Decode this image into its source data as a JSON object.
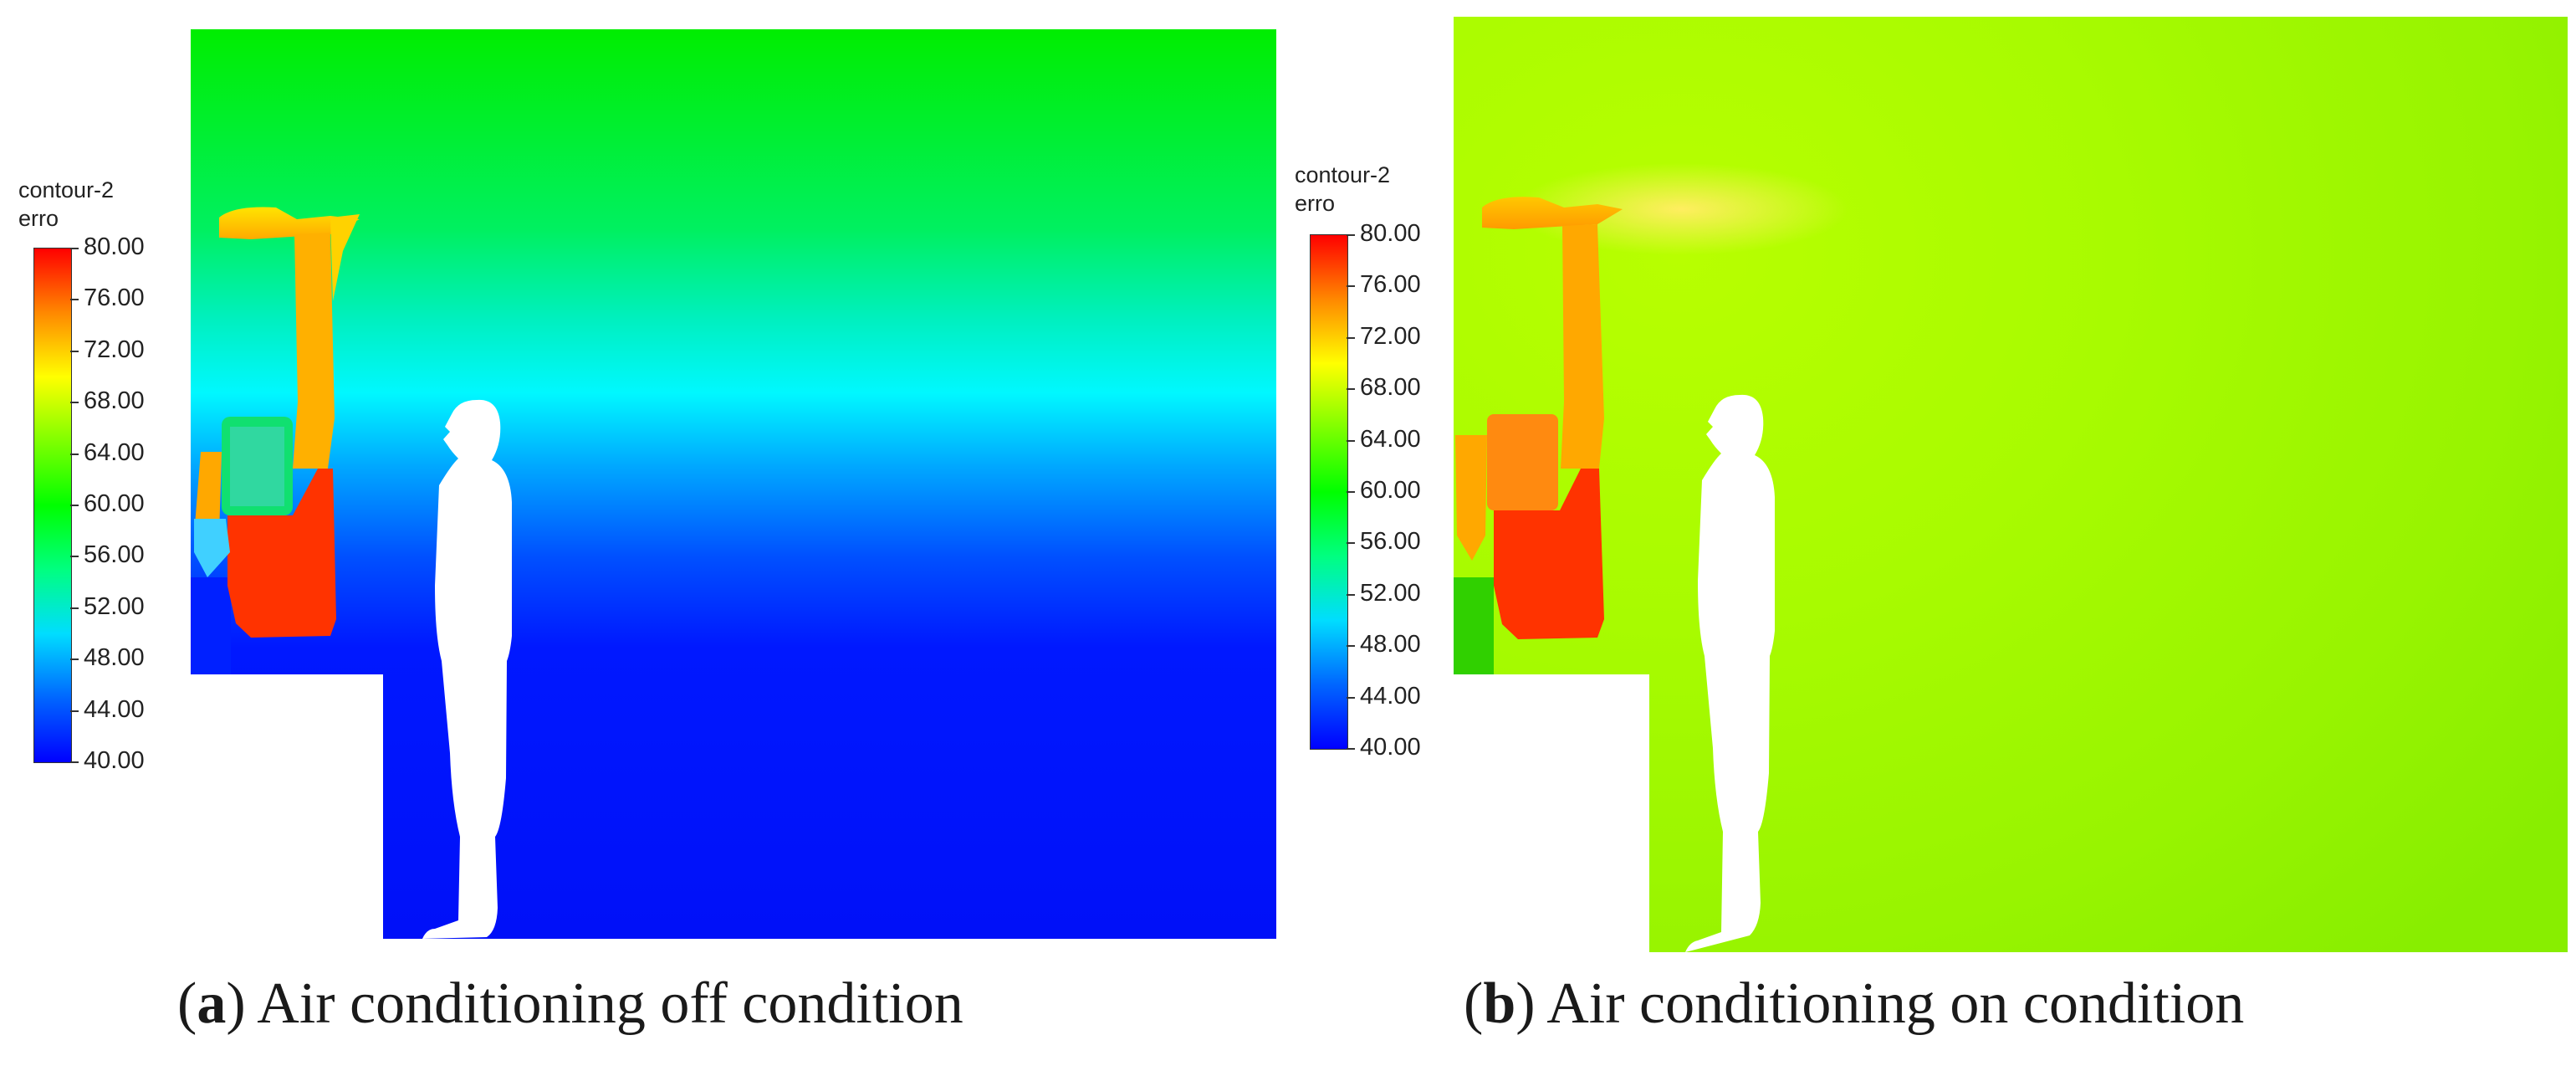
{
  "legend_colors": [
    "#0000ff",
    "#0066ff",
    "#00ddff",
    "#00ff80",
    "#00ff00",
    "#7fff00",
    "#ffff00",
    "#ff8800",
    "#ff0000"
  ],
  "panels": [
    {
      "id": "a",
      "legend": {
        "title_line1": "contour-2",
        "title_line2": "erro",
        "ticks": [
          "80.00",
          "76.00",
          "72.00",
          "68.00",
          "64.00",
          "60.00",
          "56.00",
          "52.00",
          "48.00",
          "44.00",
          "40.00"
        ]
      },
      "caption": {
        "open": "(",
        "letter": "a",
        "text": ") Air conditioning off condition"
      }
    },
    {
      "id": "b",
      "legend": {
        "title_line1": "contour-2",
        "title_line2": "erro",
        "ticks": [
          "80.00",
          "76.00",
          "72.00",
          "68.00",
          "64.00",
          "60.00",
          "56.00",
          "52.00",
          "48.00",
          "44.00",
          "40.00"
        ]
      },
      "caption": {
        "open": "(",
        "letter": "b",
        "text": ") Air conditioning on condition"
      }
    }
  ]
}
